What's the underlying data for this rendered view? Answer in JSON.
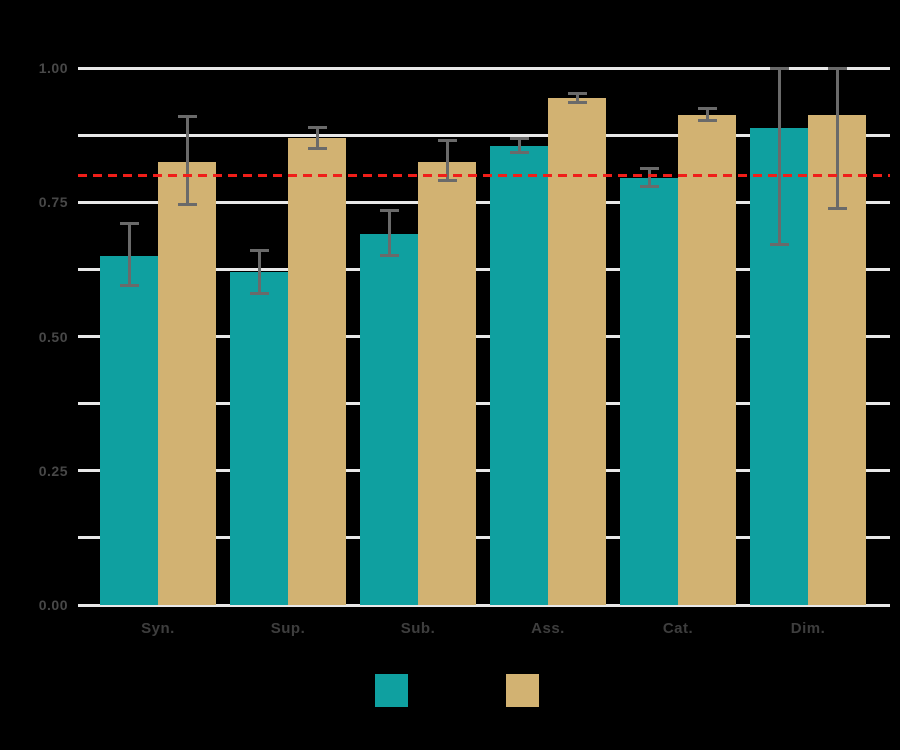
{
  "chart": {
    "background": "#000000",
    "title": ""
  },
  "chart_data": {
    "type": "bar",
    "title": "",
    "xlabel": "",
    "ylabel": "",
    "grid": true,
    "legend_position": "bottom",
    "categories": [
      "Syn.",
      "Sup.",
      "Sub.",
      "Ass.",
      "Cat.",
      "Dim."
    ],
    "series": [
      {
        "name": "teal-series",
        "color": "#0fa0a0",
        "legend_label": "",
        "values": [
          0.65,
          0.62,
          0.69,
          0.855,
          0.795,
          0.888
        ],
        "error_low": [
          0.595,
          0.58,
          0.65,
          0.843,
          0.78,
          0.672
        ],
        "error_high": [
          0.71,
          0.66,
          0.735,
          0.868,
          0.812,
          1.0
        ]
      },
      {
        "name": "tan-series",
        "color": "#d2b272",
        "legend_label": "",
        "values": [
          0.825,
          0.87,
          0.825,
          0.945,
          0.913,
          0.913
        ],
        "error_low": [
          0.745,
          0.85,
          0.79,
          0.935,
          0.902,
          0.738
        ],
        "error_high": [
          0.91,
          0.89,
          0.865,
          0.953,
          0.924,
          1.0
        ]
      }
    ],
    "error_bars": true,
    "reference_line": {
      "value": 0.8,
      "color": "#f01e19",
      "style": "dashed"
    },
    "y_axis": {
      "range": [
        0,
        1.0
      ],
      "tick_labels": [
        "0.00",
        "0.25",
        "0.50",
        "0.75",
        "1.00"
      ],
      "tick_values": [
        0,
        0.25,
        0.5,
        0.75,
        1.0
      ],
      "gridline_step": 0.125
    },
    "colors": {
      "gridline": "#e8e8e8",
      "error_bar": "#6a6a6a",
      "y_tick_label": "#484848",
      "x_tick_label": "#3e3e3e"
    }
  }
}
